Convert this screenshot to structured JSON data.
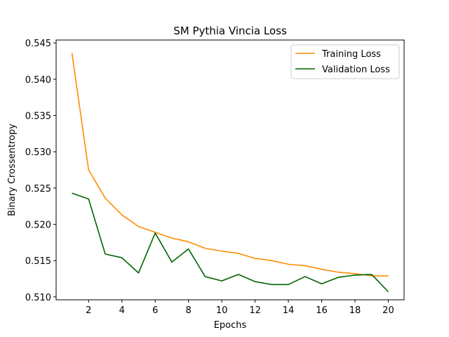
{
  "chart_data": {
    "type": "line",
    "title": "SM Pythia Vincia Loss",
    "xlabel": "Epochs",
    "ylabel": "Binary Crossentropy",
    "x": [
      1,
      2,
      3,
      4,
      5,
      6,
      7,
      8,
      9,
      10,
      11,
      12,
      13,
      14,
      15,
      16,
      17,
      18,
      19,
      20
    ],
    "xlim": [
      0.05,
      20.95
    ],
    "ylim": [
      0.5096,
      0.5454
    ],
    "xticks": [
      2,
      4,
      6,
      8,
      10,
      12,
      14,
      16,
      18,
      20
    ],
    "yticks": [
      0.51,
      0.515,
      0.52,
      0.525,
      0.53,
      0.535,
      0.54,
      0.545
    ],
    "ytick_labels": [
      "0.510",
      "0.515",
      "0.520",
      "0.525",
      "0.530",
      "0.535",
      "0.540",
      "0.545"
    ],
    "grid": false,
    "legend_position": "top-right",
    "series": [
      {
        "name": "Training Loss",
        "color": "#ff8c00",
        "values": [
          0.5436,
          0.5275,
          0.5236,
          0.5213,
          0.5197,
          0.5189,
          0.5181,
          0.5176,
          0.5167,
          0.5163,
          0.516,
          0.5153,
          0.515,
          0.5145,
          0.5143,
          0.5138,
          0.5134,
          0.5132,
          0.5129,
          0.5129
        ]
      },
      {
        "name": "Validation Loss",
        "color": "#006400",
        "values": [
          0.5243,
          0.5235,
          0.5159,
          0.5154,
          0.5133,
          0.5188,
          0.5148,
          0.5166,
          0.5128,
          0.5122,
          0.5131,
          0.5121,
          0.5117,
          0.5117,
          0.5128,
          0.5118,
          0.5127,
          0.513,
          0.5131,
          0.5107
        ]
      }
    ]
  }
}
